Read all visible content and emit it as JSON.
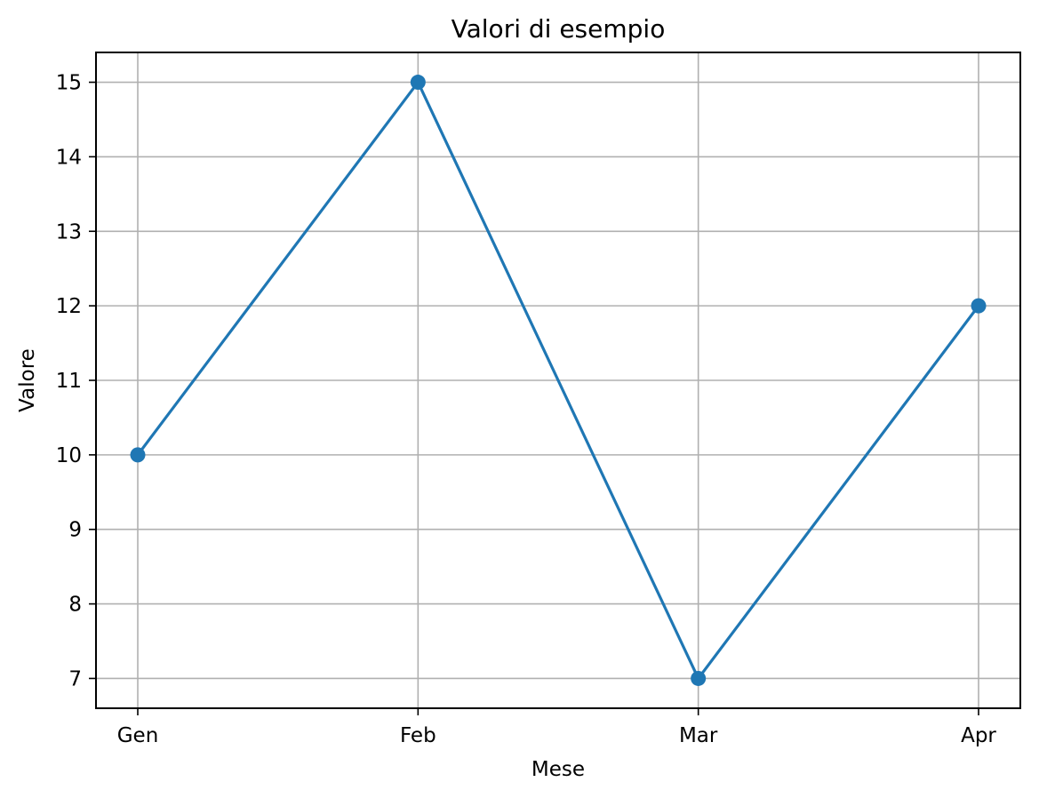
{
  "chart_data": {
    "type": "line",
    "title": "Valori di esempio",
    "xlabel": "Mese",
    "ylabel": "Valore",
    "categories": [
      "Gen",
      "Feb",
      "Mar",
      "Apr"
    ],
    "series": [
      {
        "values": [
          10,
          15,
          7,
          12
        ],
        "color": "#1f77b4",
        "marker": "circle"
      }
    ],
    "ylim": [
      6.6,
      15.4
    ],
    "yticks": [
      "7",
      "8",
      "9",
      "10",
      "11",
      "12",
      "13",
      "14",
      "15"
    ],
    "grid": true,
    "colors": {
      "line": "#1f77b4",
      "grid": "#b0b0b0",
      "axes": "#000000"
    }
  }
}
